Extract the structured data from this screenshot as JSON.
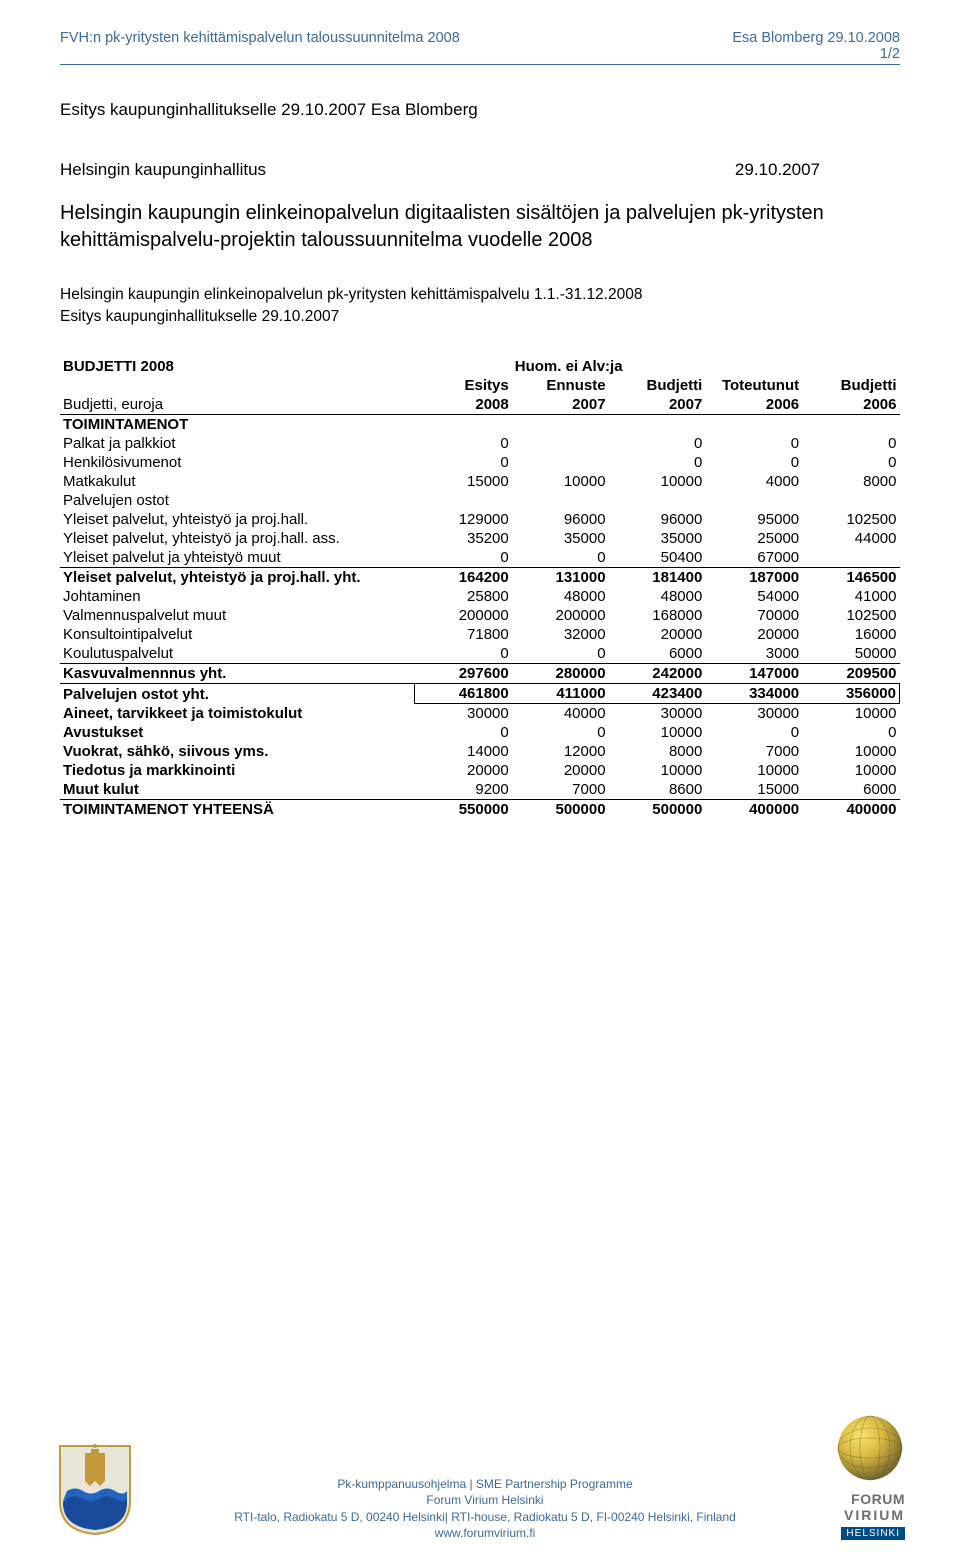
{
  "header": {
    "left": "FVH:n pk-yritysten kehittämispalvelun taloussuunnitelma 2008",
    "right1": "Esa Blomberg 29.10.2008",
    "right2": "1/2"
  },
  "intro": {
    "line1": "Esitys kaupunginhallitukselle 29.10.2007 Esa Blomberg",
    "line2_left": "Helsingin kaupunginhallitus",
    "line2_right": "29.10.2007",
    "title": "Helsingin kaupungin elinkeinopalvelun digitaalisten sisältöjen ja palvelujen pk-yritysten kehittämispalvelu-projektin taloussuunnitelma vuodelle 2008",
    "sub1": "Helsingin kaupungin elinkeinopalvelun pk-yritysten kehittämispalvelu 1.1.-31.12.2008",
    "sub2": "Esitys kaupunginhallitukselle 29.10.2007"
  },
  "table": {
    "caption_left": "BUDJETTI 2008",
    "caption_right": "Huom. ei Alv:ja",
    "head1": [
      "",
      "Esitys",
      "Ennuste",
      "Budjetti",
      "Toteutunut",
      "Budjetti"
    ],
    "head2": [
      "Budjetti, euroja",
      "2008",
      "2007",
      "2007",
      "2006",
      "2006"
    ],
    "section1": "TOIMINTAMENOT",
    "rows": [
      {
        "label": "Palkat ja palkkiot",
        "v": [
          "0",
          "",
          "0",
          "0",
          "0"
        ]
      },
      {
        "label": "Henkilösivumenot",
        "v": [
          "0",
          "",
          "0",
          "0",
          "0"
        ]
      },
      {
        "label": "Matkakulut",
        "v": [
          "15000",
          "10000",
          "10000",
          "4000",
          "8000"
        ]
      }
    ],
    "palvelujen_ostot": "Palvelujen ostot",
    "rows2": [
      {
        "label": "Yleiset palvelut, yhteistyö ja proj.hall.",
        "v": [
          "129000",
          "96000",
          "96000",
          "95000",
          "102500"
        ]
      },
      {
        "label": "Yleiset palvelut, yhteistyö ja proj.hall. ass.",
        "v": [
          "35200",
          "35000",
          "35000",
          "25000",
          "44000"
        ]
      },
      {
        "label": "Yleiset palvelut ja yhteistyö muut",
        "v": [
          "0",
          "0",
          "50400",
          "67000",
          ""
        ],
        "under": true
      }
    ],
    "rows3": [
      {
        "label": "Yleiset palvelut, yhteistyö ja proj.hall. yht.",
        "v": [
          "164200",
          "131000",
          "181400",
          "187000",
          "146500"
        ],
        "bold": true
      },
      {
        "label": "Johtaminen",
        "v": [
          "25800",
          "48000",
          "48000",
          "54000",
          "41000"
        ]
      },
      {
        "label": "Valmennuspalvelut muut",
        "v": [
          "200000",
          "200000",
          "168000",
          "70000",
          "102500"
        ]
      },
      {
        "label": "Konsultointipalvelut",
        "v": [
          "71800",
          "32000",
          "20000",
          "20000",
          "16000"
        ]
      },
      {
        "label": "Koulutuspalvelut",
        "v": [
          "0",
          "0",
          "6000",
          "3000",
          "50000"
        ],
        "under": true
      }
    ],
    "kasvu": {
      "label": "Kasvuvalmennnus yht.",
      "v": [
        "297600",
        "280000",
        "242000",
        "147000",
        "209500"
      ]
    },
    "palv_yht": {
      "label": "Palvelujen ostot yht.",
      "v": [
        "461800",
        "411000",
        "423400",
        "334000",
        "356000"
      ]
    },
    "rows4": [
      {
        "label": "Aineet, tarvikkeet ja toimistokulut",
        "v": [
          "30000",
          "40000",
          "30000",
          "30000",
          "10000"
        ]
      },
      {
        "label": "Avustukset",
        "v": [
          "0",
          "0",
          "10000",
          "0",
          "0"
        ]
      },
      {
        "label": "Vuokrat, sähkö, siivous yms.",
        "v": [
          "14000",
          "12000",
          "8000",
          "7000",
          "10000"
        ]
      },
      {
        "label": "Tiedotus ja markkinointi",
        "v": [
          "20000",
          "20000",
          "10000",
          "10000",
          "10000"
        ]
      },
      {
        "label": "Muut kulut",
        "v": [
          "9200",
          "7000",
          "8600",
          "15000",
          "6000"
        ],
        "under": true
      }
    ],
    "total": {
      "label": "TOIMINTAMENOT YHTEENSÄ",
      "v": [
        "550000",
        "500000",
        "500000",
        "400000",
        "400000"
      ]
    }
  },
  "footer": {
    "l1": "Pk-kumppanuusohjelma | SME Partnership Programme",
    "l2": "Forum Virium Helsinki",
    "l3": "RTI-talo, Radiokatu 5 D, 00240 Helsinki| RTI-house, Radiokatu 5 D, FI-00240 Helsinki, Finland",
    "l4": "www.forumvirium.fi",
    "logo1": "FORUM",
    "logo2": "VIRIUM",
    "logo3": "HELSINKI"
  },
  "colors": {
    "header_text": "#3c6a9a",
    "rule": "#3c6a9a",
    "shield_blue": "#2b4a8b",
    "shield_gold": "#c29a3a",
    "helsinki_blue": "#004b87"
  }
}
